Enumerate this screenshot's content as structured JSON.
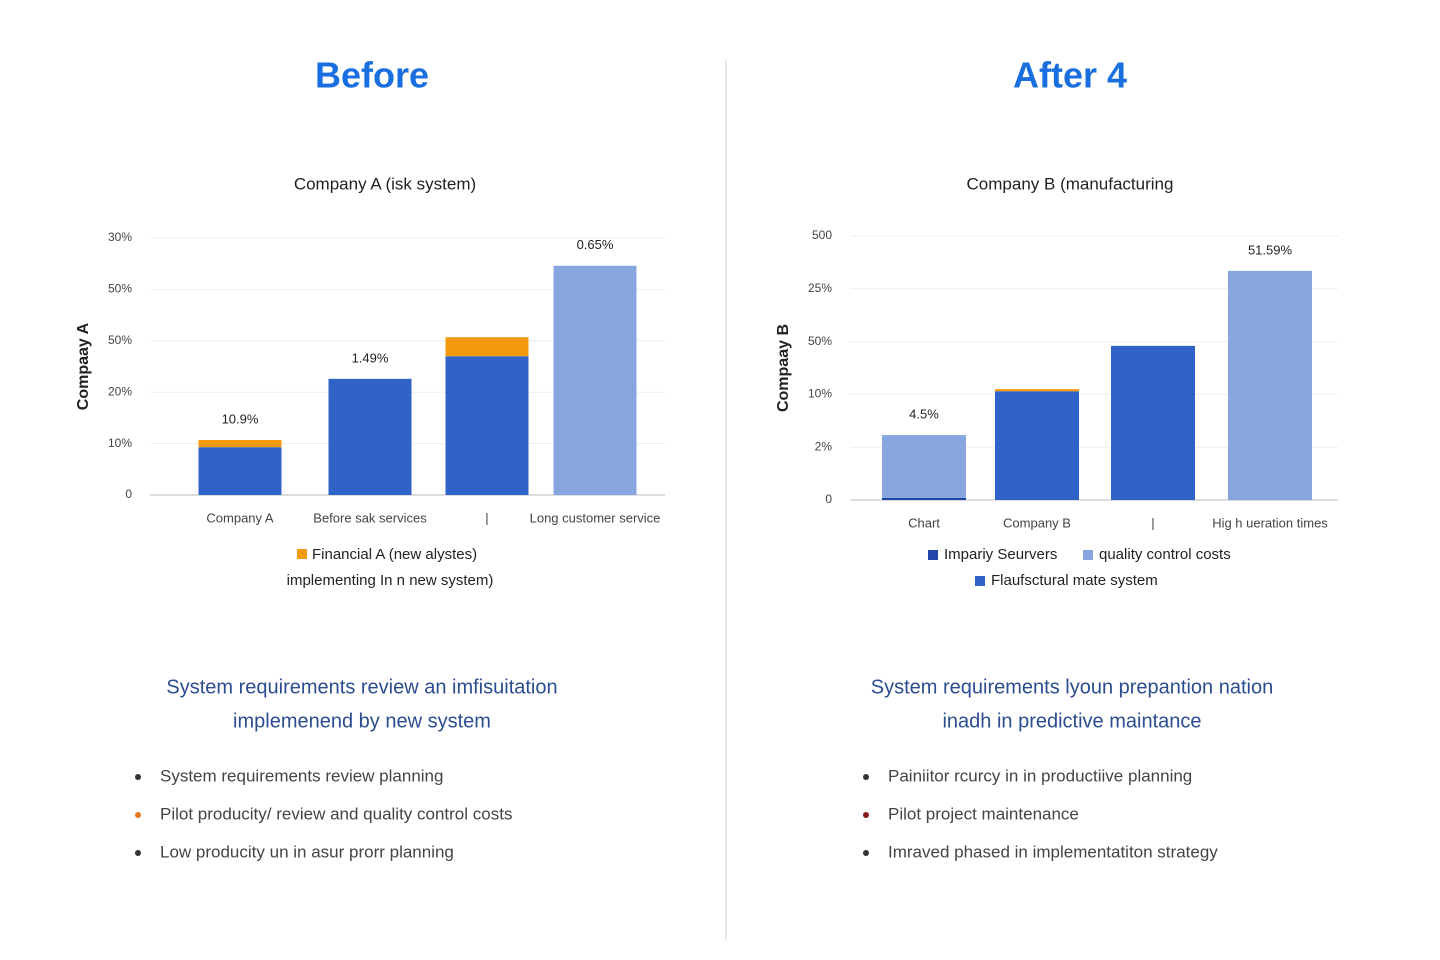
{
  "panels": [
    {
      "heading": "Before",
      "summary": [
        "System requirements review an imfisuitation",
        "implemenend by new system"
      ],
      "bullets": [
        "System requirements review planning",
        "Pilot producity/ review and quality control costs",
        "Low producity un in asur prorr planning"
      ],
      "bullet_colors": [
        "#333333",
        "#e8761e",
        "#333333"
      ]
    },
    {
      "heading": "After 4",
      "summary": [
        "System requirements lyoun prepantion nation",
        "inadh in predictive maintance"
      ],
      "bullets": [
        "Painiitor rcurcy in in productiive planning",
        "Pilot project maintenance",
        "Imraved phased in implementatiton strategy"
      ],
      "bullet_colors": [
        "#333333",
        "#8b1a1a",
        "#333333"
      ]
    }
  ],
  "chart_data": [
    {
      "type": "bar",
      "title": "Company A (isk system)",
      "ylabel": "Compaay A",
      "categories": [
        "Company A",
        "Before sak services",
        "|",
        "Long customer service"
      ],
      "series": [
        {
          "name": "implementing In n new system)",
          "color": "#2f63c8",
          "values": [
            0.93,
            2.26,
            2.7,
            null
          ]
        },
        {
          "name": "Financial A (new alystes)",
          "color": "#f59a0e",
          "values": [
            0.14,
            null,
            0.37,
            null
          ]
        },
        {
          "color": "#87a6e0",
          "values": [
            null,
            null,
            null,
            4.46
          ]
        }
      ],
      "bar_labels": [
        "10.9%",
        "1.49%",
        null,
        "0.65%"
      ],
      "ylim": [
        0,
        5
      ],
      "yticks": [
        0,
        1,
        2,
        3,
        4,
        5
      ],
      "ytick_labels": [
        "0",
        "10%",
        "20%",
        "50%",
        "50%",
        "30%"
      ],
      "grid": true
    },
    {
      "type": "bar",
      "title": "Company B (manufacturing",
      "ylabel": "Compaay B",
      "categories": [
        "Chart",
        "Company B",
        "|",
        "Hig h ueration times"
      ],
      "series": [
        {
          "name": "Impariy Seurvers",
          "color": "#1f45a8",
          "values": [
            0.04,
            null,
            null,
            null
          ]
        },
        {
          "name": "Flaufsctural mate system",
          "color": "#2f63c8",
          "values": [
            null,
            2.06,
            2.92,
            null
          ]
        },
        {
          "name": "quality control costs",
          "color": "#87a6e0",
          "values": [
            1.19,
            null,
            null,
            4.34
          ]
        },
        {
          "color": "#f59a0e",
          "values": [
            null,
            0.04,
            null,
            null
          ]
        }
      ],
      "bar_labels": [
        "4.5%",
        null,
        null,
        "51.59%"
      ],
      "ylim": [
        0,
        5
      ],
      "yticks": [
        0,
        1,
        2,
        3,
        4,
        5
      ],
      "ytick_labels": [
        "0",
        "2%",
        "10%",
        "50%",
        "25%",
        "500"
      ],
      "grid": true
    }
  ]
}
